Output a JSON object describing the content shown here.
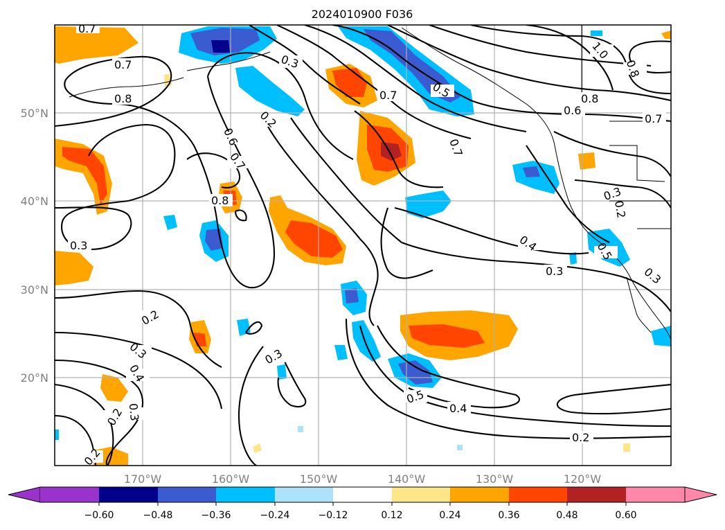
{
  "map": {
    "title": "2024010900 F036",
    "lat_labels": [
      "50°N",
      "40°N",
      "30°N",
      "20°N"
    ],
    "lon_labels": [
      "170°W",
      "160°W",
      "150°W",
      "140°W",
      "130°W",
      "120°W"
    ],
    "contour_labels": [
      "0.7",
      "0.7",
      "0.8",
      "0.3",
      "0.5",
      "0.7",
      "1.0",
      "0.8",
      "0.8",
      "0.6",
      "0.7",
      "0.2",
      "0.6",
      "0.7",
      "0.7",
      "0.8",
      "0.3",
      "0.2",
      "0.3",
      "0.4",
      "0.5",
      "0.3",
      "0.3",
      "0.2",
      "0.3",
      "0.4",
      "0.2",
      "0.3",
      "0.3",
      "0.5",
      "0.4",
      "0.2",
      "0.2"
    ]
  },
  "colorbar": {
    "ticks": [
      "−0.60",
      "−0.48",
      "−0.36",
      "−0.24",
      "−0.12",
      "0.12",
      "0.24",
      "0.36",
      "0.48",
      "0.60"
    ],
    "colors": [
      "#9933cc",
      "#00008b",
      "#3a5cd0",
      "#00bfff",
      "#aee2fb",
      "#ffffff",
      "#fde68a",
      "#ffa500",
      "#ff4500",
      "#b22222",
      "#ff88aa"
    ]
  }
}
